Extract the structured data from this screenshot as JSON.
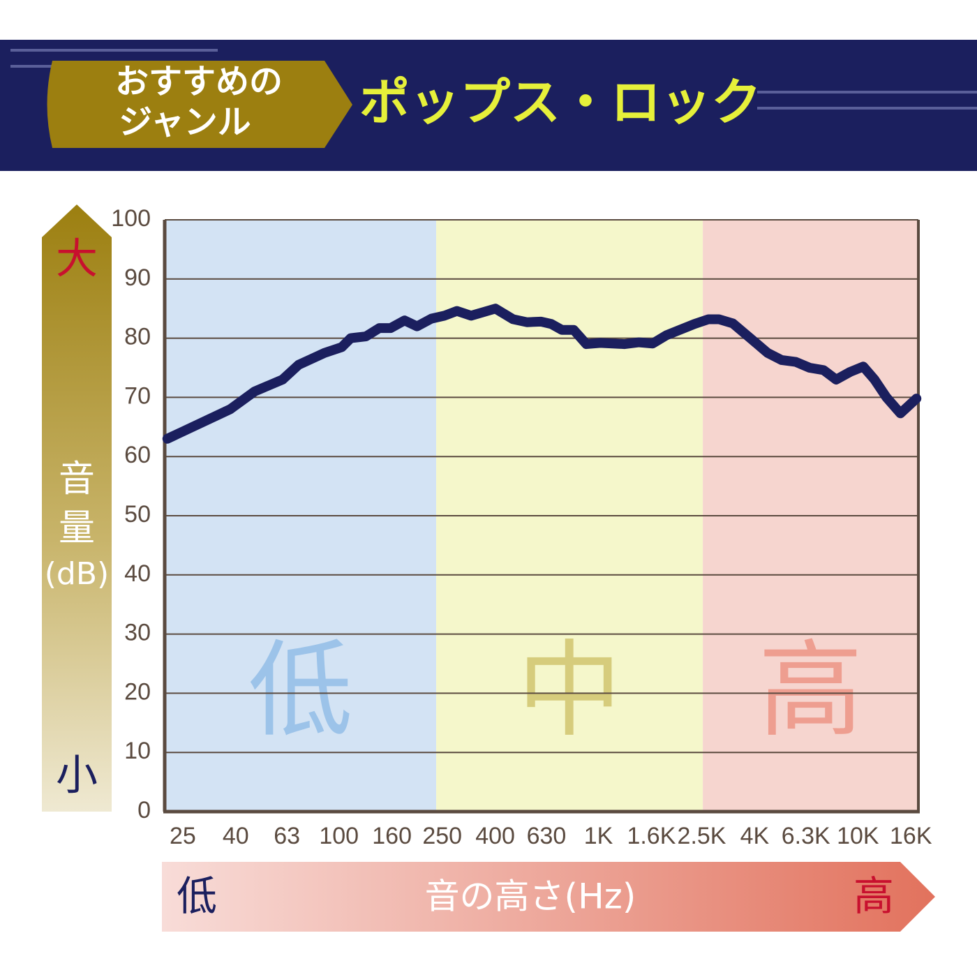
{
  "chart_data": {
    "type": "line",
    "title": "ポップス・ロック",
    "badge": [
      "おすすめの",
      "ジャンル"
    ],
    "y_label": [
      "音量",
      "(dB)"
    ],
    "y_high": "大",
    "y_low": "小",
    "x_label": "音の高さ(Hz)",
    "x_low": "低",
    "x_high": "高",
    "xscale": "log",
    "xlim": [
      21.3,
      17100
    ],
    "ylim": [
      0,
      100
    ],
    "yticks": [
      0,
      10,
      20,
      30,
      40,
      50,
      60,
      70,
      80,
      90,
      100
    ],
    "xticks": [
      25,
      40,
      63,
      100,
      160,
      250,
      400,
      630,
      {
        "value": 1000,
        "label": "1K"
      },
      {
        "value": 1600,
        "label": "1.6K"
      },
      {
        "value": 2500,
        "label": "2.5K"
      },
      {
        "value": 4000,
        "label": "4K"
      },
      {
        "value": 6300,
        "label": "6.3K"
      },
      {
        "value": 10000,
        "label": "10K"
      },
      {
        "value": 16000,
        "label": "16K"
      }
    ],
    "grid": true,
    "bands": [
      {
        "label": "低",
        "color": "#d3e3f4",
        "label_color": "#9cc3e9",
        "xrange": [
          21.3,
          237
        ]
      },
      {
        "label": "中",
        "color": "#f5f7cb",
        "label_color": "#d6cc7c",
        "xrange": [
          237,
          2525
        ]
      },
      {
        "label": "高",
        "color": "#f6d5cf",
        "label_color": "#ee9e90",
        "xrange": [
          2525,
          17100
        ]
      }
    ],
    "x": [
      21.8,
      38.1,
      47.3,
      60.6,
      69.9,
      87.9,
      102.6,
      111,
      127,
      143,
      158,
      179,
      200,
      227,
      255,
      285,
      323,
      401,
      469,
      530,
      600,
      658,
      723,
      803,
      898,
      1016,
      1262,
      1428,
      1617,
      1828,
      2344,
      2654,
      2911,
      3296,
      4093,
      4490,
      5083,
      5755,
      6515,
      7377,
      8240,
      9330,
      10490,
      11590,
      12880,
      14580,
      16810
    ],
    "series": [
      {
        "color": "#1b1f5e",
        "values": [
          63,
          68,
          71,
          73,
          75.5,
          77.5,
          78.5,
          80,
          80.3,
          81.7,
          81.7,
          83,
          82,
          83.3,
          83.8,
          84.6,
          83.8,
          85,
          83.2,
          82.7,
          82.8,
          82.4,
          81.4,
          81.4,
          79,
          79.2,
          79,
          79.3,
          79.1,
          80.5,
          82.4,
          83.2,
          83.2,
          82.5,
          79,
          77.5,
          76.3,
          76,
          75,
          74.6,
          73,
          74.3,
          75.2,
          73,
          70,
          67.3,
          69.8
        ]
      }
    ]
  }
}
